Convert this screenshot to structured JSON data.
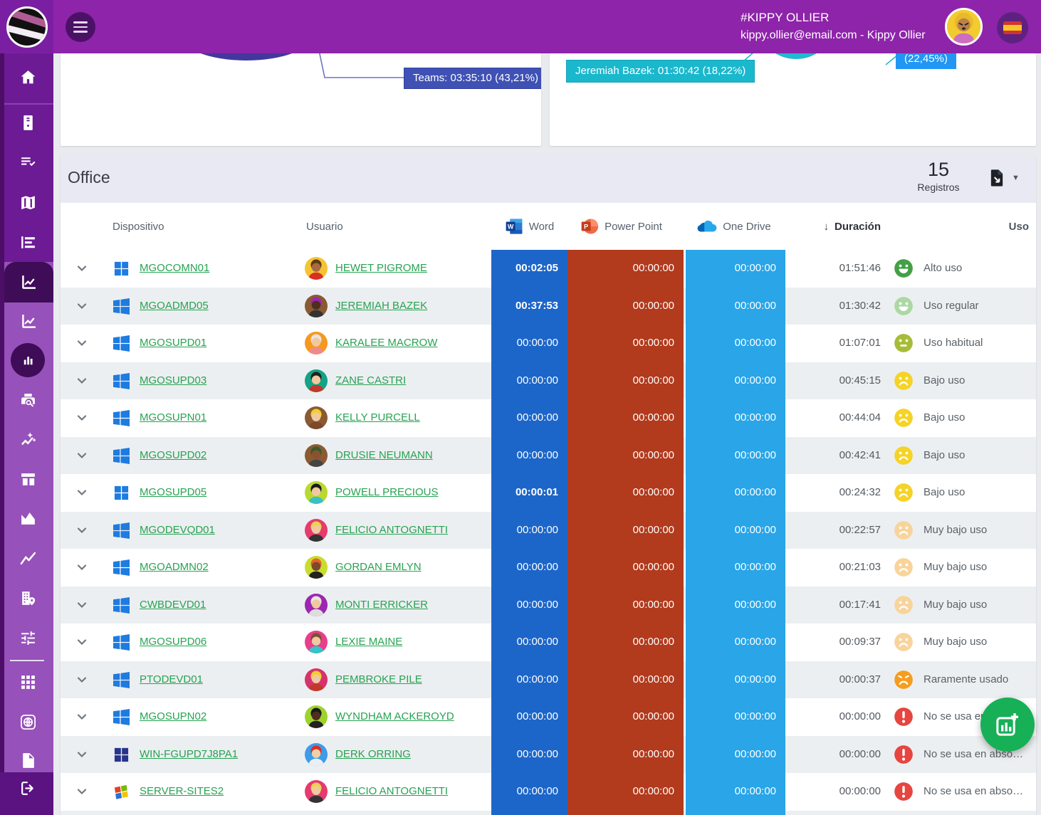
{
  "header": {
    "handle": "#KIPPY OLLIER",
    "account_line": "kippy.ollier@email.com - Kippy Ollier"
  },
  "charts": {
    "left_tooltip": "Teams: 03:35:10 (43,21%)",
    "left_tooltip_color": "#3f51b5",
    "right_tooltip": "Jeremiah Bazek: 01:30:42 (18,22%)",
    "right_tooltip_color": "#1ab8cd",
    "right_tooltip2": "(22,45%)",
    "right_tooltip2_color": "#2196f3"
  },
  "office": {
    "title": "Office",
    "records_value": "15",
    "records_label": "Registros",
    "columns": {
      "device": "Dispositivo",
      "user": "Usuario",
      "word": "Word",
      "powerpoint": "Power Point",
      "onedrive": "One Drive",
      "duration_sort": "↓",
      "duration": "Duración",
      "usage": "Uso"
    },
    "band_colors": {
      "word": "#1d66c9",
      "powerpoint": "#b23a1d",
      "onedrive": "#29a5e8"
    },
    "link_color": "#27a351",
    "rows": [
      {
        "device": "MGOCOMN01",
        "win": "win11",
        "user": "HEWET PIGROME",
        "avatar": {
          "bg": "#f5c432",
          "skin": "#a96a3f",
          "hair": "#5d3a1a",
          "shirt": "#d93025"
        },
        "word": "00:02:05",
        "word_bold": true,
        "powerpoint": "00:00:00",
        "onedrive": "00:00:00",
        "duration": "01:51:46",
        "status": "Alto uso",
        "face": "happy",
        "face_color": "#43a047"
      },
      {
        "device": "MGOADMD05",
        "win": "win10",
        "user": "JEREMIAH BAZEK",
        "avatar": {
          "bg": "#8a5a33",
          "skin": "#4e2e1e",
          "hair": "#9c27b0",
          "shirt": "#333333"
        },
        "word": "00:37:53",
        "word_bold": true,
        "powerpoint": "00:00:00",
        "onedrive": "00:00:00",
        "duration": "01:30:42",
        "status": "Uso regular",
        "face": "happy",
        "face_color": "#abd8a4"
      },
      {
        "device": "MGOSUPD01",
        "win": "win10",
        "user": "KARALEE MACROW",
        "avatar": {
          "bg": "#f5991f",
          "skin": "#f0c9a0",
          "hair": "#e8e4e0",
          "shirt": "#ef8a8a"
        },
        "word": "00:00:00",
        "word_bold": false,
        "powerpoint": "00:00:00",
        "onedrive": "00:00:00",
        "duration": "01:07:01",
        "status": "Uso habitual",
        "face": "neutral",
        "face_color": "#a6bc39"
      },
      {
        "device": "MGOSUPD03",
        "win": "win10",
        "user": "ZANE CASTRI",
        "avatar": {
          "bg": "#13a385",
          "skin": "#f0c9a0",
          "hair": "#222222",
          "shirt": "#c0392b"
        },
        "word": "00:00:00",
        "word_bold": false,
        "powerpoint": "00:00:00",
        "onedrive": "00:00:00",
        "duration": "00:45:15",
        "status": "Bajo uso",
        "face": "sad",
        "face_color": "#f5d327"
      },
      {
        "device": "MGOSUPN01",
        "win": "win10",
        "user": "KELLY PURCELL",
        "avatar": {
          "bg": "#8a5a33",
          "skin": "#f0c9a0",
          "hair": "#f2d02a",
          "shirt": "#7a4a2a"
        },
        "word": "00:00:00",
        "word_bold": false,
        "powerpoint": "00:00:00",
        "onedrive": "00:00:00",
        "duration": "00:44:04",
        "status": "Bajo uso",
        "face": "sad",
        "face_color": "#f5d327"
      },
      {
        "device": "MGOSUPD02",
        "win": "win10",
        "user": "DRUSIE NEUMANN",
        "avatar": {
          "bg": "#8a5a33",
          "skin": "#8a5230",
          "hair": "#3a5a2a",
          "shirt": "#444444"
        },
        "word": "00:00:00",
        "word_bold": false,
        "powerpoint": "00:00:00",
        "onedrive": "00:00:00",
        "duration": "00:42:41",
        "status": "Bajo uso",
        "face": "sad",
        "face_color": "#f5d327"
      },
      {
        "device": "MGOSUPD05",
        "win": "win11",
        "user": "POWELL PRECIOUS",
        "avatar": {
          "bg": "#b9d930",
          "skin": "#f0c9a0",
          "hair": "#1a1a1a",
          "shirt": "#3bbfc4"
        },
        "word": "00:00:01",
        "word_bold": true,
        "powerpoint": "00:00:00",
        "onedrive": "00:00:00",
        "duration": "00:24:32",
        "status": "Bajo uso",
        "face": "sad",
        "face_color": "#f5d327"
      },
      {
        "device": "MGODEVQD01",
        "win": "win10",
        "user": "FELICIO ANTOGNETTI",
        "avatar": {
          "bg": "#e73a6e",
          "skin": "#f0c9a0",
          "hair": "#e8d44d",
          "shirt": "#333333"
        },
        "word": "00:00:00",
        "word_bold": false,
        "powerpoint": "00:00:00",
        "onedrive": "00:00:00",
        "duration": "00:22:57",
        "status": "Muy bajo uso",
        "face": "sad",
        "face_color": "#f8d49c"
      },
      {
        "device": "MGOADMN02",
        "win": "win10",
        "user": "GORDAN EMLYN",
        "avatar": {
          "bg": "#c8dd2e",
          "skin": "#7a4a2a",
          "hair": "#e8622a",
          "shirt": "#222222"
        },
        "word": "00:00:00",
        "word_bold": false,
        "powerpoint": "00:00:00",
        "onedrive": "00:00:00",
        "duration": "00:21:03",
        "status": "Muy bajo uso",
        "face": "sad",
        "face_color": "#f8d49c"
      },
      {
        "device": "CWBDEVD01",
        "win": "win10",
        "user": "MONTI ERRICKER",
        "avatar": {
          "bg": "#9c27b0",
          "skin": "#f0c9a0",
          "hair": "#e8e4e0",
          "shirt": "#dddddd"
        },
        "word": "00:00:00",
        "word_bold": false,
        "powerpoint": "00:00:00",
        "onedrive": "00:00:00",
        "duration": "00:17:41",
        "status": "Muy bajo uso",
        "face": "sad",
        "face_color": "#f8d49c"
      },
      {
        "device": "MGOSUPD06",
        "win": "win10",
        "user": "LEXIE MAINE",
        "avatar": {
          "bg": "#e83e8c",
          "skin": "#f0c9a0",
          "hair": "#7a5230",
          "shirt": "#35c4c8"
        },
        "word": "00:00:00",
        "word_bold": false,
        "powerpoint": "00:00:00",
        "onedrive": "00:00:00",
        "duration": "00:09:37",
        "status": "Muy bajo uso",
        "face": "sad",
        "face_color": "#f8d49c"
      },
      {
        "device": "PTODEVD01",
        "win": "win10",
        "user": "PEMBROKE PILE",
        "avatar": {
          "bg": "#d6336c",
          "skin": "#f0c9a0",
          "hair": "#f2d02a",
          "shirt": "#c0392b"
        },
        "word": "00:00:00",
        "word_bold": false,
        "powerpoint": "00:00:00",
        "onedrive": "00:00:00",
        "duration": "00:00:37",
        "status": "Raramente usado",
        "face": "angry",
        "face_color": "#f69d1f"
      },
      {
        "device": "MGOSUPN02",
        "win": "win10",
        "user": "WYNDHAM ACKEROYD",
        "avatar": {
          "bg": "#9ed32e",
          "skin": "#4e2e1e",
          "hair": "#1a1a1a",
          "shirt": "#222222"
        },
        "word": "00:00:00",
        "word_bold": false,
        "powerpoint": "00:00:00",
        "onedrive": "00:00:00",
        "duration": "00:00:00",
        "status": "No se usa en abso…",
        "face": "exclaim",
        "face_color": "#e64540"
      },
      {
        "device": "WIN-FGUPD7J8PA1",
        "win": "win11dark",
        "user": "DERK ORRING",
        "avatar": {
          "bg": "#3d9be9",
          "skin": "#f0d0a8",
          "hair": "#d93025",
          "shirt": "#e8f0f5"
        },
        "word": "00:00:00",
        "word_bold": false,
        "powerpoint": "00:00:00",
        "onedrive": "00:00:00",
        "duration": "00:00:00",
        "status": "No se usa en abso…",
        "face": "exclaim",
        "face_color": "#e64540"
      },
      {
        "device": "SERVER-SITES2",
        "win": "winclassic",
        "user": "FELICIO ANTOGNETTI",
        "avatar": {
          "bg": "#e73a6e",
          "skin": "#f0c9a0",
          "hair": "#e8d44d",
          "shirt": "#333333"
        },
        "word": "00:00:00",
        "word_bold": false,
        "powerpoint": "00:00:00",
        "onedrive": "00:00:00",
        "duration": "00:00:00",
        "status": "No se usa en abso…",
        "face": "exclaim",
        "face_color": "#e64540"
      }
    ]
  },
  "sidebar": {
    "items": [
      "home",
      "devices",
      "activity-log",
      "map",
      "report-list",
      "usage-chart",
      "trend-chart",
      "bar-chart",
      "print-report",
      "insights",
      "dashboard-columns",
      "area-report",
      "line-report",
      "locations",
      "filters",
      "apps-grid",
      "web",
      "documents",
      "logout"
    ]
  },
  "fab": {
    "color": "#17b057",
    "icon": "add-chart-icon"
  }
}
